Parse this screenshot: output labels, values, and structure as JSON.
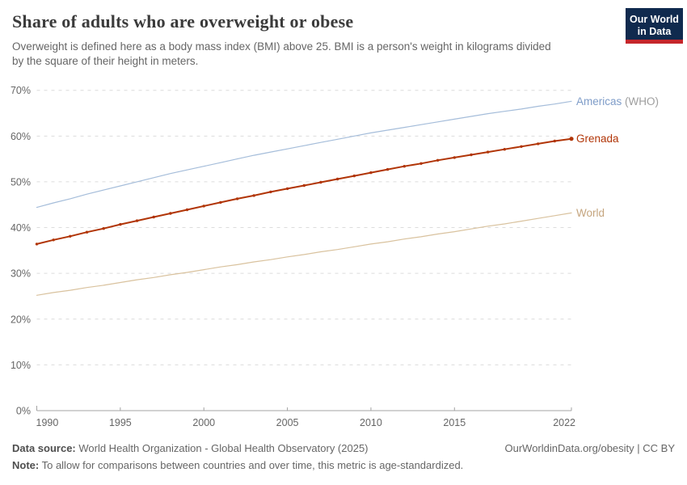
{
  "header": {
    "title": "Share of adults who are overweight or obese",
    "subtitle_lines": [
      "Overweight is defined here as a body mass index (BMI) above 25. BMI is a person's weight in kilograms divided",
      "by the square of their height in meters."
    ],
    "logo": {
      "line1": "Our World",
      "line2": "in Data"
    }
  },
  "colors": {
    "title": "#3b3b3b",
    "subtitle": "#666666",
    "grid": "#dcdcdc",
    "axis": "#a3a3a3",
    "tick_label": "#666666",
    "logo_bg": "#102a4e",
    "logo_stripe": "#c5262b",
    "who_suffix": "#9e9e9e"
  },
  "chart_data": {
    "type": "line",
    "title": "Share of adults who are overweight or obese",
    "xlabel": "",
    "ylabel": "",
    "ylim": [
      0,
      70
    ],
    "yticks": [
      0,
      10,
      20,
      30,
      40,
      50,
      60,
      70
    ],
    "ytick_suffix": "%",
    "xticks": [
      1990,
      1995,
      2000,
      2005,
      2010,
      2015,
      2022
    ],
    "x_range": [
      1990,
      2022
    ],
    "grid": "horizontal-dashed",
    "legend_position": "labels-at-line-ends-right",
    "series": [
      {
        "name": "Americas (WHO)",
        "label_main": "Americas",
        "label_suffix": " (WHO)",
        "color": "#a5bdda",
        "label_color": "#7e9cc8",
        "markers": false,
        "line_width": 1.2,
        "values": [
          44.4,
          45.4,
          46.3,
          47.3,
          48.2,
          49.1,
          50.0,
          50.9,
          51.8,
          52.6,
          53.4,
          54.2,
          55.0,
          55.8,
          56.5,
          57.2,
          57.9,
          58.6,
          59.3,
          60.0,
          60.7,
          61.3,
          61.9,
          62.5,
          63.1,
          63.7,
          64.3,
          64.9,
          65.4,
          65.9,
          66.5,
          67.0,
          67.6
        ]
      },
      {
        "name": "Grenada",
        "label_main": "Grenada",
        "label_suffix": "",
        "color": "#b13507",
        "label_color": "#b13507",
        "markers": true,
        "line_width": 2,
        "values": [
          36.4,
          37.3,
          38.1,
          39.0,
          39.8,
          40.7,
          41.5,
          42.3,
          43.1,
          43.9,
          44.7,
          45.5,
          46.3,
          47.0,
          47.8,
          48.5,
          49.2,
          49.9,
          50.6,
          51.3,
          52.0,
          52.7,
          53.4,
          54.0,
          54.7,
          55.3,
          55.9,
          56.5,
          57.1,
          57.7,
          58.3,
          58.9,
          59.4
        ]
      },
      {
        "name": "World",
        "label_main": "World",
        "label_suffix": "",
        "color": "#d9c29e",
        "label_color": "#c5a57e",
        "markers": false,
        "line_width": 1.2,
        "values": [
          25.2,
          25.8,
          26.3,
          26.9,
          27.4,
          28.0,
          28.6,
          29.1,
          29.7,
          30.2,
          30.8,
          31.4,
          31.9,
          32.5,
          33.0,
          33.6,
          34.1,
          34.7,
          35.2,
          35.8,
          36.4,
          36.9,
          37.5,
          38.0,
          38.6,
          39.1,
          39.7,
          40.3,
          40.8,
          41.4,
          42.0,
          42.6,
          43.2
        ]
      }
    ]
  },
  "footer": {
    "source_label": "Data source:",
    "source_text": " World Health Organization - Global Health Observatory (2025)",
    "note_label": "Note:",
    "note_text": " To allow for comparisons between countries and over time, this metric is age-standardized.",
    "link": "OurWorldinData.org/obesity | CC BY"
  }
}
